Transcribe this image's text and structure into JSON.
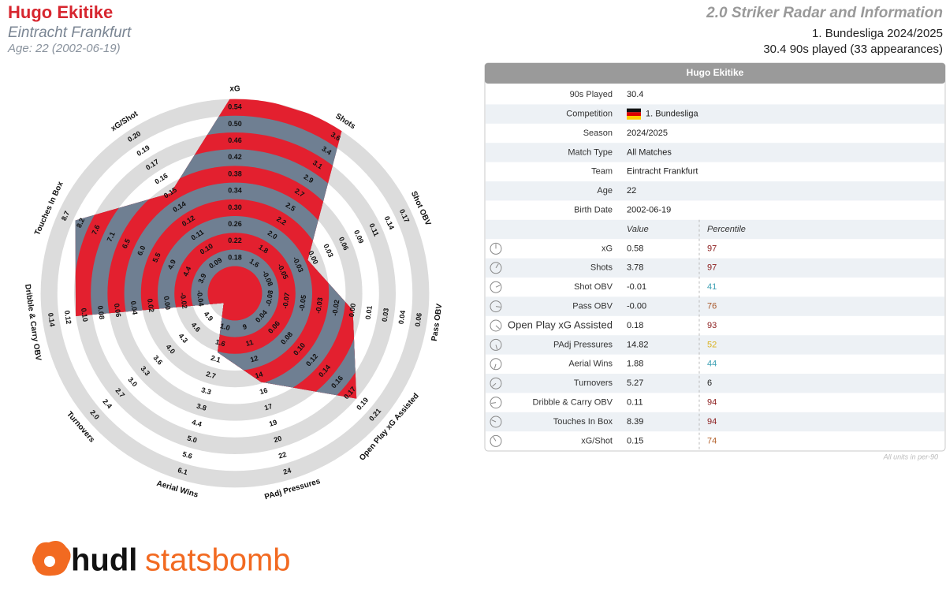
{
  "header": {
    "player": "Hugo Ekitike",
    "team": "Eintracht Frankfurt",
    "age_line": "Age: 22 (2002-06-19)",
    "report_title": "2.0 Striker Radar and Information",
    "competition_line": "1. Bundesliga 2024/2025",
    "minutes_line": "30.4 90s played (33 appearances)"
  },
  "chart_data": {
    "type": "radar",
    "categories": [
      "xG",
      "Shots",
      "Shot OBV",
      "Pass OBV",
      "Open Play xG Assisted",
      "PAdj Pressures",
      "Aerial Wins",
      "Turnovers",
      "Dribble & Carry OBV",
      "Touches In Box",
      "xG/Shot"
    ],
    "values": [
      0.58,
      3.78,
      -0.01,
      -0.0,
      0.18,
      14.82,
      1.88,
      5.27,
      0.11,
      8.39,
      0.15
    ],
    "colors": [
      "#e3202f",
      "#6f7f92"
    ],
    "ticks": [
      [
        0.18,
        0.22,
        0.26,
        {
          "value": 0.3,
          "label": "0.30"
        },
        0.34,
        0.38,
        0.42,
        0.46,
        {
          "value": 0.5,
          "label": "0.50"
        },
        0.54
      ],
      [
        1.6,
        1.8,
        {
          "value": 2,
          "label": "2.0"
        },
        2.2,
        2.5,
        2.7,
        2.9,
        3.1,
        3.4,
        3.6
      ],
      [
        -0.08,
        -0.05,
        -0.03,
        {
          "value": 0,
          "label": "0.00"
        },
        0.03,
        0.06,
        0.09,
        0.11,
        0.14,
        0.17
      ],
      [
        -0.08,
        -0.07,
        -0.05,
        -0.03,
        -0.02,
        {
          "value": 0,
          "label": "0.00"
        },
        0.01,
        0.03,
        0.04,
        0.06
      ],
      [
        0.04,
        0.06,
        0.08,
        {
          "value": 0.1,
          "label": "0.10"
        },
        0.12,
        0.14,
        0.16,
        0.17,
        0.19,
        0.21
      ],
      [
        9,
        11,
        12,
        14,
        16,
        17,
        19,
        20,
        22,
        24
      ],
      [
        {
          "value": 1,
          "label": "1.0"
        },
        1.6,
        2.1,
        2.7,
        3.3,
        3.8,
        4.4,
        {
          "value": 5,
          "label": "5.0"
        },
        5.6,
        6.1
      ],
      [
        4.9,
        4.6,
        4.3,
        {
          "value": 4,
          "label": "4.0"
        },
        3.6,
        3.3,
        {
          "value": 3,
          "label": "3.0"
        },
        2.7,
        2.4,
        {
          "value": 2,
          "label": "2.0"
        }
      ],
      [
        -0.04,
        -0.02,
        {
          "value": 0,
          "label": "0.00"
        },
        0.02,
        0.04,
        0.06,
        0.08,
        {
          "value": 0.1,
          "label": "0.10"
        },
        0.12,
        0.14
      ],
      [
        3.9,
        4.4,
        4.9,
        5.5,
        {
          "value": 6,
          "label": "6.0"
        },
        6.5,
        7.1,
        7.6,
        8.2,
        8.7
      ],
      [
        0.09,
        {
          "value": 0.1,
          "label": "0.10"
        },
        0.11,
        0.12,
        0.14,
        0.15,
        0.16,
        0.17,
        0.19,
        {
          "value": 0.2,
          "label": "0.20"
        }
      ]
    ]
  },
  "table": {
    "title": "Hugo Ekitike",
    "info": [
      [
        "90s Played",
        "30.4"
      ],
      [
        "Competition",
        "1. Bundesliga"
      ],
      [
        "Season",
        "2024/2025"
      ],
      [
        "Match Type",
        "All Matches"
      ],
      [
        "Team",
        "Eintracht Frankfurt"
      ],
      [
        "Age",
        "22"
      ],
      [
        "Birth Date",
        "2002-06-19"
      ]
    ],
    "columns": [
      "Value",
      "Percentile"
    ],
    "metrics": [
      {
        "name": "xG",
        "value": "0.58",
        "percentile": "97",
        "color": "#8b1c1c"
      },
      {
        "name": "Shots",
        "value": "3.78",
        "percentile": "97",
        "color": "#8b1c1c"
      },
      {
        "name": "Shot OBV",
        "value": "-0.01",
        "percentile": "41",
        "color": "#3b9fb3"
      },
      {
        "name": "Pass OBV",
        "value": "-0.00",
        "percentile": "76",
        "color": "#a8582a"
      },
      {
        "name": "Open Play xG Assisted",
        "value": "0.18",
        "percentile": "93",
        "color": "#8b1c1c"
      },
      {
        "name": "PAdj Pressures",
        "value": "14.82",
        "percentile": "52",
        "color": "#d9b21f"
      },
      {
        "name": "Aerial Wins",
        "value": "1.88",
        "percentile": "44",
        "color": "#3b9fb3"
      },
      {
        "name": "Turnovers",
        "value": "5.27",
        "percentile": "6",
        "color": "#222222"
      },
      {
        "name": "Dribble & Carry OBV",
        "value": "0.11",
        "percentile": "94",
        "color": "#8b1c1c"
      },
      {
        "name": "Touches In Box",
        "value": "8.39",
        "percentile": "94",
        "color": "#8b1c1c"
      },
      {
        "name": "xG/Shot",
        "value": "0.15",
        "percentile": "74",
        "color": "#b3602a"
      }
    ],
    "footnote": "All units in per-90"
  },
  "logo": {
    "parts": [
      "hudl",
      "statsbomb"
    ]
  }
}
